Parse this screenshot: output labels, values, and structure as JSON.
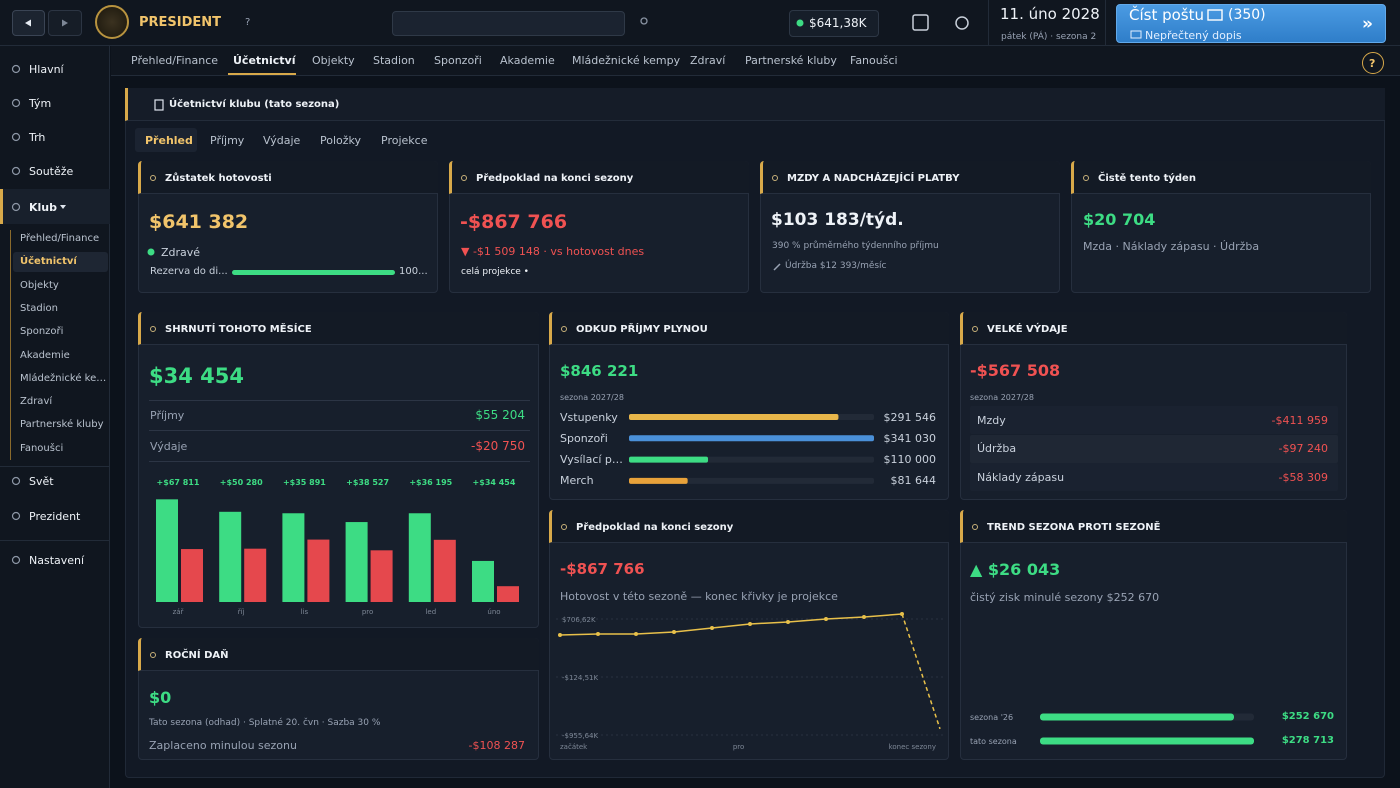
{
  "topbar": {
    "brand": "PRESIDENT",
    "help": "?",
    "cash": "$641,38K",
    "date": "11. úno 2028",
    "date_sub": "pátek (PÁ) · sezona 2",
    "mail_title": "Číst poštu",
    "mail_count": "(350)",
    "mail_sub": "Nepřečtený dopis",
    "mail_arrow": "»"
  },
  "sidebar": {
    "top": [
      "Hlavní",
      "Tým",
      "Trh",
      "Soutěže"
    ],
    "club": "Klub",
    "club_items": [
      "Přehled/Finance",
      "Účetnictví",
      "Objekty",
      "Stadion",
      "Sponzoři",
      "Akademie",
      "Mládežnické kempy",
      "Zdraví",
      "Partnerské kluby",
      "Fanoušci"
    ],
    "bottom": [
      "Svět",
      "Prezident"
    ],
    "settings": "Nastavení"
  },
  "tabs": [
    "Přehled/Finance",
    "Účetnictví",
    "Objekty",
    "Stadion",
    "Sponzoři",
    "Akademie",
    "Mládežnické kempy",
    "Zdraví",
    "Partnerské kluby",
    "Fanoušci"
  ],
  "help": "?",
  "panel": {
    "title": "Účetnictví klubu (tato sezona)",
    "subtabs": [
      "Přehled",
      "Příjmy",
      "Výdaje",
      "Položky",
      "Projekce"
    ]
  },
  "cash_card": {
    "title": "Zůstatek hotovosti",
    "value": "$641 382",
    "status": "Zdravé",
    "reserve": "Rezerva do di...",
    "reserve_pct": "100..."
  },
  "forecast_card": {
    "title": "Předpoklad na konci sezony",
    "value": "-$867 766",
    "delta": "▼ -$1 509 148 · vs hotovost dnes",
    "note": "celá projekce •"
  },
  "wages_card": {
    "title": "MZDY A NADCHÁZEJÍCÍ PLATBY",
    "value": "$103 183/týd.",
    "note": "390 % průměrného týdenního příjmu",
    "upkeep": "Údržba $12 393/měsíc"
  },
  "week_card": {
    "title": "Čistě tento týden",
    "value": "$20 704",
    "note": "Mzda · Náklady zápasu · Údržba"
  },
  "month": {
    "title": "SHRNUTÍ TOHOTO MĚSÍCE",
    "value": "$34 454",
    "rows": [
      {
        "label": "Příjmy",
        "value": "$55 204"
      },
      {
        "label": "Výdaje",
        "value": "-$20 750"
      }
    ],
    "chart": {
      "type": "bar",
      "categories": [
        "zář",
        "říj",
        "lis",
        "pro",
        "led",
        "úno"
      ],
      "series": [
        {
          "color": "#3ddc84",
          "values": [
            140000,
            123000,
            121000,
            109000,
            121000,
            56000
          ]
        },
        {
          "color": "#e5484d",
          "values": [
            72189,
            72720,
            85109,
            70473,
            84805,
            21546
          ]
        }
      ],
      "net": {
        "values": [
          67811,
          50280,
          35891,
          38527,
          36195,
          34454
        ],
        "value_labels": [
          "+$67 811",
          "+$50 280",
          "+$35 891",
          "+$38 527",
          "+$36 195",
          "+$34 454"
        ]
      },
      "ylim": [
        0,
        150000
      ]
    }
  },
  "income": {
    "title": "ODKUD PŘÍJMY PLYNOU",
    "value": "$846 221",
    "season": "sezona 2027/28",
    "chart": {
      "type": "bar",
      "categories": [
        "Vstupenky",
        "Sponzoři",
        "Vysílací prá...",
        "Merch"
      ],
      "values": [
        291546,
        341030,
        110000,
        81644
      ],
      "value_labels": [
        "$291 546",
        "$341 030",
        "$110 000",
        "$81 644"
      ],
      "colors": [
        "#e8b64a",
        "#4a90d9",
        "#3ddc84",
        "#e8a23a"
      ],
      "xlim": [
        0,
        341030
      ]
    }
  },
  "expenses": {
    "title": "VELKÉ VÝDAJE",
    "value": "-$567 508",
    "season": "sezona 2027/28",
    "rows": [
      {
        "label": "Mzdy",
        "value": "-$411 959"
      },
      {
        "label": "Údržba",
        "value": "-$97 240"
      },
      {
        "label": "Náklady zápasu",
        "value": "-$58 309"
      }
    ]
  },
  "tax": {
    "title": "ROČNÍ DAŇ",
    "value": "$0",
    "note": "Tato sezona (odhad) · Splatné 20. čvn · Sazba 30 %",
    "row": {
      "label": "Zaplaceno minulou sezonu",
      "value": "-$108 287"
    }
  },
  "projection": {
    "title": "Předpoklad na konci sezony",
    "value": "-$867 766",
    "note": "Hotovost v této sezoně — konec křivky je projekce",
    "chart": {
      "type": "line",
      "x": [
        0,
        1,
        2,
        3,
        4,
        5,
        6,
        7,
        8,
        9,
        10
      ],
      "color": "#e8c04a",
      "series": [
        {
          "values": [
            478000,
            492000,
            492000,
            521000,
            578000,
            635000,
            664000,
            706000,
            735000,
            778000,
            null
          ]
        },
        {
          "dashed": true,
          "values": [
            null,
            null,
            null,
            null,
            null,
            null,
            null,
            null,
            null,
            778000,
            -867766
          ]
        }
      ],
      "xlim": [
        0,
        10
      ],
      "xticks": [
        {
          "value": 0,
          "label": "začátek"
        },
        {
          "value": 4.7,
          "label": "pro"
        },
        {
          "value": 10,
          "label": "konec sezony"
        }
      ],
      "ylim": [
        -955640,
        706620
      ],
      "yticks": [
        {
          "value": 706620,
          "label": "$706,62K"
        },
        {
          "value": -124510,
          "label": "-$124,51K"
        },
        {
          "value": -955640,
          "label": "-$955,64K"
        }
      ]
    }
  },
  "trend": {
    "title": "TREND SEZONA PROTI SEZONĚ",
    "value": "▲ $26 043",
    "note": "čistý zisk minulé sezony $252 670",
    "chart": {
      "type": "bar",
      "categories": [
        "sezona '26",
        "tato sezona"
      ],
      "values": [
        252670,
        278713
      ],
      "value_labels": [
        "$252 670",
        "$278 713"
      ],
      "xlim": [
        0,
        278713
      ],
      "color": "#3ddc84"
    }
  }
}
